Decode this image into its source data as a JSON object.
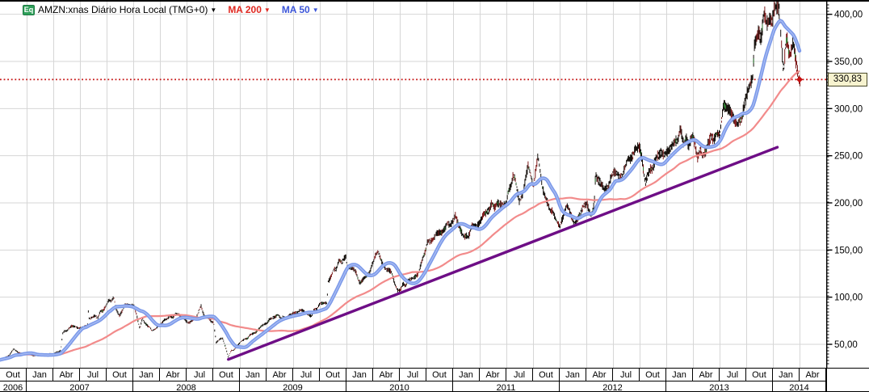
{
  "header": {
    "badge": "Eq",
    "instrument": "AMZN:xnas Diário Hora Local (TMG+0)",
    "arrow": "▼",
    "ma200_label": "MA 200",
    "ma50_label": "MA 50"
  },
  "colors": {
    "badge_green": "#2FA05A",
    "instrument_text": "#000000",
    "ma200_text": "#E02820",
    "ma50_text": "#3B55D9",
    "ma50_line": "#7B99E9",
    "ma50_highlight": "#A6BAF2",
    "ma200_line": "#F28B8B",
    "trendline": "#6E0E86",
    "last_price_line": "#C51111",
    "candle_black": "#17120E",
    "candle_red": "#7E1B1B",
    "candle_green": "#2E7D32",
    "candle_white": "#ECECEC",
    "grid": "#D6D6D6",
    "axis": "#000000",
    "label_box_bg": "#F7F3CF"
  },
  "y_axis": {
    "tick_values": [
      400,
      350,
      300,
      250,
      200,
      150,
      100,
      50
    ],
    "tick_labels": [
      "400,00",
      "350,00",
      "300,00",
      "250,00",
      "200,00",
      "150,00",
      "100,00",
      "50,00"
    ],
    "last_price": 330.83,
    "last_price_label": "330,83"
  },
  "x_axis": {
    "months": [
      "Out",
      "Jan",
      "Abr",
      "Jul",
      "Out",
      "Jan",
      "Abr",
      "Jul",
      "Out",
      "Jan",
      "Abr",
      "Jul",
      "Out",
      "Jan",
      "Abr",
      "Jul",
      "Out",
      "Jan",
      "Abr",
      "Jul",
      "Out",
      "Jan",
      "Abr",
      "Jul",
      "Out",
      "Jan",
      "Abr",
      "Jul",
      "Out",
      "Jan",
      "Abr"
    ],
    "years": [
      {
        "label": "2006",
        "cells": 1
      },
      {
        "label": "2007",
        "cells": 4
      },
      {
        "label": "2008",
        "cells": 4
      },
      {
        "label": "2009",
        "cells": 4
      },
      {
        "label": "2010",
        "cells": 4
      },
      {
        "label": "2011",
        "cells": 4
      },
      {
        "label": "2012",
        "cells": 4
      },
      {
        "label": "2013",
        "cells": 4
      },
      {
        "label": "2014",
        "cells": 2
      }
    ]
  },
  "chart_data": {
    "type": "line",
    "style": "compressed daily candlesticks with MA50, MA200, trendline and last-price line",
    "symbol": "AMZN:xnas",
    "timeframe": "Diário",
    "x_unit": "months since 2006-10-01 (11 px per month, quarter gridlines)",
    "x_visible_months": 93,
    "ylim": [
      25,
      413.4
    ],
    "grid": "on",
    "last_price": 330.83,
    "price_keypoints": [
      [
        0,
        33.5
      ],
      [
        1,
        38
      ],
      [
        1.5,
        45
      ],
      [
        2,
        40.3
      ],
      [
        3,
        39.5
      ],
      [
        4,
        37.7
      ],
      [
        5,
        39.1
      ],
      [
        6,
        39.8
      ],
      [
        6.8,
        44
      ],
      [
        7,
        61.3
      ],
      [
        8,
        69.1
      ],
      [
        9,
        68.4
      ],
      [
        9.8,
        69.5
      ],
      [
        9.9,
        86
      ],
      [
        10,
        78.5
      ],
      [
        11,
        79.9
      ],
      [
        12,
        93.2
      ],
      [
        12.75,
        100
      ],
      [
        13,
        89.2
      ],
      [
        13.4,
        80
      ],
      [
        14,
        90.6
      ],
      [
        15,
        92.6
      ],
      [
        15.7,
        68
      ],
      [
        16,
        77.7
      ],
      [
        17,
        64.5
      ],
      [
        18,
        71.3
      ],
      [
        19,
        78.6
      ],
      [
        20,
        81.6
      ],
      [
        21,
        73.3
      ],
      [
        22,
        76.3
      ],
      [
        22.6,
        90
      ],
      [
        23,
        80.8
      ],
      [
        24,
        72.8
      ],
      [
        24.3,
        51
      ],
      [
        25,
        57.2
      ],
      [
        25.65,
        36
      ],
      [
        26,
        42.7
      ],
      [
        27,
        51.3
      ],
      [
        28,
        58.8
      ],
      [
        29,
        64.8
      ],
      [
        30,
        73.4
      ],
      [
        31,
        80.5
      ],
      [
        32,
        78
      ],
      [
        33,
        83.7
      ],
      [
        34,
        85.8
      ],
      [
        35,
        81.2
      ],
      [
        36,
        93.4
      ],
      [
        36.75,
        94
      ],
      [
        36.9,
        118
      ],
      [
        37,
        118.8
      ],
      [
        38,
        135.9
      ],
      [
        38.9,
        144
      ],
      [
        39,
        134.5
      ],
      [
        40,
        125.4
      ],
      [
        40.5,
        113.8
      ],
      [
        41,
        118.4
      ],
      [
        42,
        135.8
      ],
      [
        42.5,
        150
      ],
      [
        43,
        137.1
      ],
      [
        44,
        125.5
      ],
      [
        44.7,
        107
      ],
      [
        45,
        109.3
      ],
      [
        46,
        117.9
      ],
      [
        47,
        124.8
      ],
      [
        48,
        157.1
      ],
      [
        49,
        165.2
      ],
      [
        50,
        175.4
      ],
      [
        51,
        180
      ],
      [
        51.2,
        188
      ],
      [
        52,
        169.6
      ],
      [
        52.6,
        162
      ],
      [
        53,
        173.3
      ],
      [
        54,
        180.1
      ],
      [
        55,
        195.8
      ],
      [
        56,
        196.7
      ],
      [
        57,
        204.5
      ],
      [
        57.7,
        227
      ],
      [
        58,
        222.5
      ],
      [
        58.4,
        202
      ],
      [
        59,
        215.2
      ],
      [
        59.4,
        240
      ],
      [
        60,
        216.2
      ],
      [
        60.5,
        246
      ],
      [
        61,
        213.5
      ],
      [
        62,
        192.3
      ],
      [
        63,
        173.1
      ],
      [
        63.5,
        192
      ],
      [
        64,
        194.4
      ],
      [
        64.6,
        176
      ],
      [
        65,
        179.7
      ],
      [
        66,
        202.5
      ],
      [
        66.5,
        189
      ],
      [
        66.85,
        197
      ],
      [
        67,
        231.9
      ],
      [
        67.5,
        225
      ],
      [
        68,
        212.9
      ],
      [
        69,
        228.4
      ],
      [
        70,
        233.3
      ],
      [
        71,
        248.3
      ],
      [
        71.5,
        263
      ],
      [
        72,
        254.3
      ],
      [
        72.6,
        223
      ],
      [
        73,
        232.9
      ],
      [
        74,
        252.1
      ],
      [
        75,
        250.9
      ],
      [
        76,
        265.5
      ],
      [
        76.5,
        274
      ],
      [
        77,
        264.3
      ],
      [
        78,
        266.5
      ],
      [
        78.5,
        248
      ],
      [
        79,
        253.8
      ],
      [
        80,
        269.2
      ],
      [
        81,
        277.7
      ],
      [
        81.4,
        309
      ],
      [
        82,
        301.2
      ],
      [
        82.7,
        284
      ],
      [
        83,
        281
      ],
      [
        84,
        312.6
      ],
      [
        84.7,
        332
      ],
      [
        84.85,
        362
      ],
      [
        85,
        364
      ],
      [
        86,
        393.6
      ],
      [
        86.5,
        386
      ],
      [
        87,
        398.8
      ],
      [
        87.7,
        405.5
      ],
      [
        88.15,
        346
      ],
      [
        88.6,
        372
      ],
      [
        88.9,
        361
      ],
      [
        89.2,
        370
      ],
      [
        89.6,
        345
      ],
      [
        90,
        330.83
      ]
    ],
    "ma50_window_months": 2.4,
    "ma200_window_months": 9.6,
    "trendline": {
      "from": [
        25.7,
        34
      ],
      "to": [
        87.5,
        259
      ]
    },
    "jitter": {
      "bar_step_months": 0.09,
      "block_freq": 3.2,
      "swing_pct": 0.022,
      "bar_halfspan_pct": [
        0.006,
        0.022
      ]
    }
  }
}
